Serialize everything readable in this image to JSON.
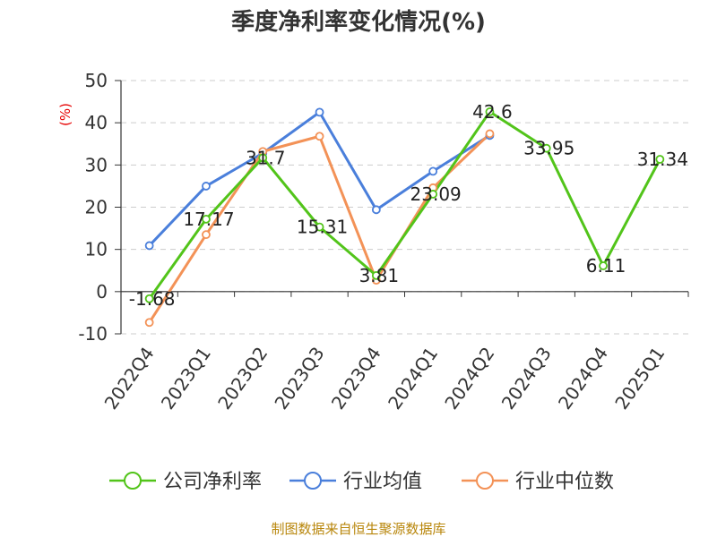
{
  "chart_data": {
    "type": "line",
    "title": "季度净利率变化情况(%)",
    "ylabel": "(%)",
    "xlabel": "",
    "ylim": [
      -10,
      50
    ],
    "yticks": [
      -10,
      0,
      10,
      20,
      30,
      40,
      50
    ],
    "grid": true,
    "legend_position": "bottom",
    "categories": [
      "2022Q4",
      "2023Q1",
      "2023Q2",
      "2023Q3",
      "2023Q4",
      "2024Q1",
      "2024Q2",
      "2024Q3",
      "2024Q4",
      "2025Q1"
    ],
    "series": [
      {
        "name": "公司净利率",
        "color": "#52c41a",
        "values": [
          -1.68,
          17.17,
          31.7,
          15.31,
          3.81,
          23.09,
          42.6,
          33.95,
          6.11,
          31.34
        ],
        "labels": [
          "-1.68",
          "17.17",
          "31.7",
          "15.31",
          "3.81",
          "23.09",
          "42.6",
          "33.95",
          "6.11",
          "31.34"
        ]
      },
      {
        "name": "行业均值",
        "color": "#4a7fdb",
        "values": [
          10.9,
          25.0,
          32.8,
          42.5,
          19.4,
          28.5,
          37.0,
          null,
          null,
          null
        ]
      },
      {
        "name": "行业中位数",
        "color": "#f39257",
        "values": [
          -7.3,
          13.5,
          33.2,
          36.8,
          2.7,
          24.6,
          37.4,
          null,
          null,
          null
        ]
      }
    ]
  },
  "source_text": "制图数据来自恒生聚源数据库"
}
